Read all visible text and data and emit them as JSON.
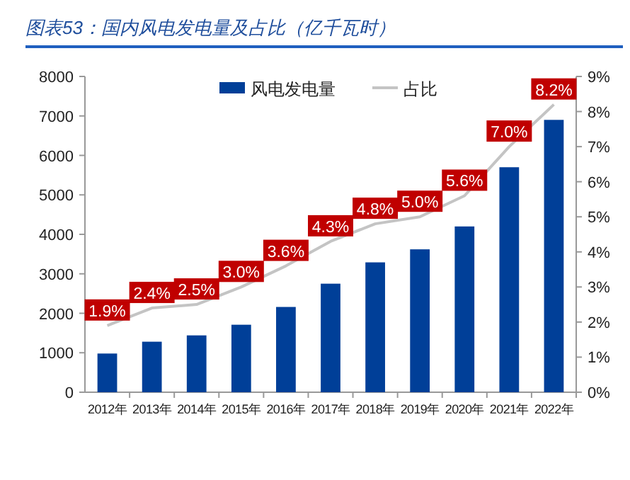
{
  "chart_data": {
    "type": "bar",
    "title": "图表53：国内风电发电量及占比（亿千瓦时）",
    "categories": [
      "2012年",
      "2013年",
      "2014年",
      "2015年",
      "2016年",
      "2017年",
      "2018年",
      "2019年",
      "2020年",
      "2021年",
      "2022年"
    ],
    "series": [
      {
        "name": "风电发电量",
        "color": "#003f98",
        "values": [
          980,
          1280,
          1440,
          1710,
          2160,
          2750,
          3290,
          3620,
          4200,
          5700,
          6900
        ]
      },
      {
        "name": "占比",
        "type": "line",
        "axis": "y2",
        "color": "#c4c4c4",
        "values": [
          1.9,
          2.4,
          2.5,
          3.0,
          3.6,
          4.3,
          4.8,
          5.0,
          5.6,
          7.0,
          8.2
        ],
        "value_labels": [
          "1.9%",
          "2.4%",
          "2.5%",
          "3.0%",
          "3.6%",
          "4.3%",
          "4.8%",
          "5.0%",
          "5.6%",
          "7.0%",
          "8.2%"
        ]
      }
    ],
    "ylim": [
      0,
      8000
    ],
    "yticks": [
      0,
      1000,
      2000,
      3000,
      4000,
      5000,
      6000,
      7000,
      8000
    ],
    "y2lim": [
      0,
      9
    ],
    "y2ticks": [
      {
        "value": 0,
        "label": "0%"
      },
      {
        "value": 1,
        "label": "1%"
      },
      {
        "value": 2,
        "label": "2%"
      },
      {
        "value": 3,
        "label": "3%"
      },
      {
        "value": 4,
        "label": "4%"
      },
      {
        "value": 5,
        "label": "5%"
      },
      {
        "value": 6,
        "label": "6%"
      },
      {
        "value": 7,
        "label": "7%"
      },
      {
        "value": 8,
        "label": "8%"
      },
      {
        "value": 9,
        "label": "9%"
      }
    ],
    "legend": "top"
  }
}
